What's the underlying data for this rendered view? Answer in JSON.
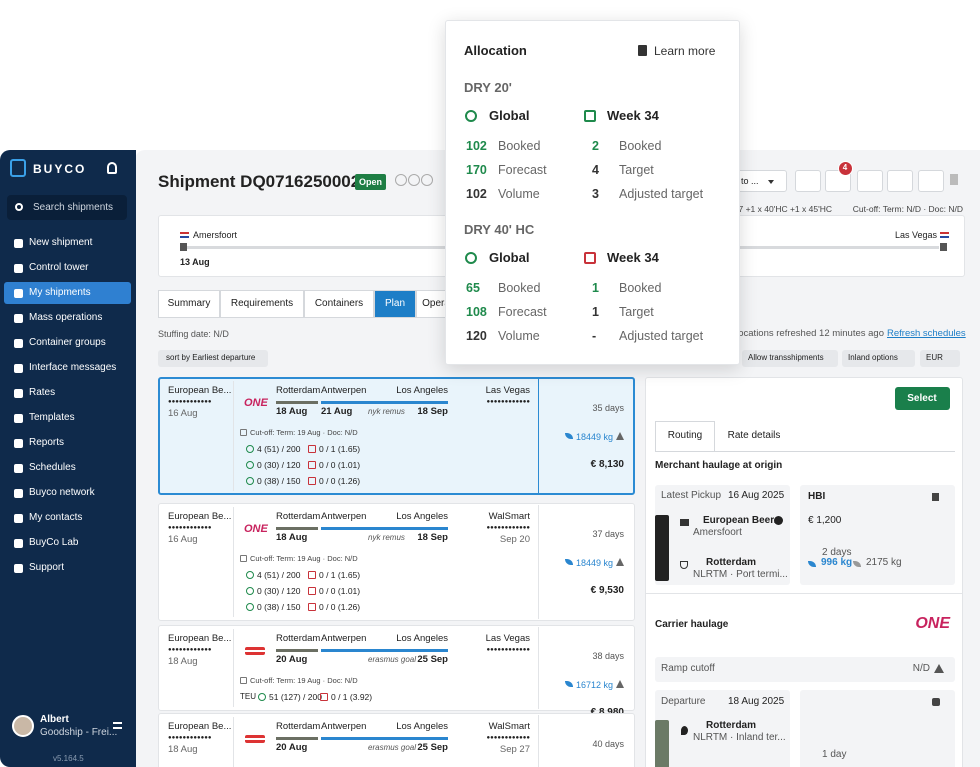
{
  "sidebar": {
    "brand": "BUYCO",
    "search": "Search shipments",
    "nav": [
      "New shipment",
      "Control tower",
      "My shipments",
      "Mass operations",
      "Container groups",
      "Interface messages",
      "Rates",
      "Templates",
      "Reports",
      "Schedules",
      "Buyco network",
      "My contacts",
      "BuyCo Lab",
      "Support"
    ],
    "active": 2,
    "user": {
      "name": "Albert",
      "org": "Goodship - Frei..."
    },
    "version": "v5.164.5"
  },
  "header": {
    "title": "Shipment DQ0716250002",
    "status": "Open",
    "action": "to ...",
    "badge": "4",
    "containers": "7 +1 x 40'HC +1 x 45'HC",
    "cutoff": "Cut-off: Term: N/D · Doc: N/D"
  },
  "route": {
    "origin": "Amersfoort",
    "date": "13 Aug",
    "destination": "Las Vegas"
  },
  "tabs": {
    "items": [
      "Summary",
      "Requirements",
      "Containers",
      "Plan",
      "Opera"
    ],
    "active": 3
  },
  "toolbar": {
    "stuffing": "Stuffing date: N/D",
    "refresh_note": "locations refreshed 12 minutes ago",
    "refresh_link": "Refresh schedules",
    "sort": "sort by Earliest departure",
    "filters": [
      "Allow transshipments",
      "Inland options",
      "EUR"
    ]
  },
  "results": [
    {
      "origin": "European Be...",
      "origin_dots": "●●●●●●●●●●●●",
      "origin_date": "16 Aug",
      "carrier": "ONE",
      "legs": [
        {
          "place": "Rotterdam",
          "date": "18 Aug"
        },
        {
          "place": "Antwerpen",
          "date": "21 Aug",
          "vessel": "nyk remus"
        },
        {
          "place": "Los Angeles",
          "date": "18 Sep"
        }
      ],
      "destination": "Las Vegas",
      "destination_dots": "●●●●●●●●●●●●",
      "cutoff": "Cut-off: Term: 19 Aug · Doc: N/D",
      "allocations": [
        [
          "4 (51) / 200",
          "0 / 1 (1.65)"
        ],
        [
          "0 (30) / 120",
          "0 / 0 (1.01)"
        ],
        [
          "0 (38) / 150",
          "0 / 0 (1.26)"
        ]
      ],
      "duration": "35 days",
      "weight": "18449 kg",
      "price": "€ 8,130"
    },
    {
      "origin": "European Be...",
      "origin_dots": "●●●●●●●●●●●●",
      "origin_date": "16 Aug",
      "carrier": "ONE",
      "legs": [
        {
          "place": "Rotterdam",
          "date": "18 Aug"
        },
        {
          "place": "Antwerpen",
          "vessel": "nyk remus"
        },
        {
          "place": "Los Angeles",
          "date": "18 Sep"
        }
      ],
      "destination": "WalSmart",
      "destination_dots": "●●●●●●●●●●●●",
      "destination_date": "Sep 20",
      "cutoff": "Cut-off: Term: 19 Aug · Doc: N/D",
      "allocations": [
        [
          "4 (51) / 200",
          "0 / 1 (1.65)"
        ],
        [
          "0 (30) / 120",
          "0 / 0 (1.01)"
        ],
        [
          "0 (38) / 150",
          "0 / 0 (1.26)"
        ]
      ],
      "duration": "37 days",
      "weight": "18449 kg",
      "price": "€ 9,530"
    },
    {
      "origin": "European Be...",
      "origin_dots": "●●●●●●●●●●●●",
      "origin_date": "18 Aug",
      "legs": [
        {
          "place": "Rotterdam",
          "date": "20 Aug"
        },
        {
          "place": "Antwerpen",
          "vessel": "erasmus goal"
        },
        {
          "place": "Los Angeles",
          "date": "25 Sep"
        }
      ],
      "destination": "Las Vegas",
      "destination_dots": "●●●●●●●●●●●●",
      "cutoff": "Cut-off: Term: 19 Aug · Doc: N/D",
      "unit": "TEU",
      "allocations": [
        [
          "51 (127) / 200",
          "0 / 1 (3.92)"
        ]
      ],
      "duration": "38 days",
      "weight": "16712 kg",
      "price": "€ 8,980"
    },
    {
      "origin": "European Be...",
      "origin_dots": "●●●●●●●●●●●●",
      "origin_date": "18 Aug",
      "legs": [
        {
          "place": "Rotterdam",
          "date": "20 Aug"
        },
        {
          "place": "Antwerpen",
          "vessel": "erasmus goal"
        },
        {
          "place": "Los Angeles",
          "date": "25 Sep"
        }
      ],
      "destination": "WalSmart",
      "destination_dots": "●●●●●●●●●●●●",
      "destination_date": "Sep 27",
      "duration": "40 days",
      "weight": "16712 kg"
    }
  ],
  "detail": {
    "select": "Select",
    "tabs": [
      "Routing",
      "Rate details"
    ],
    "merchant": {
      "title": "Merchant haulage at origin",
      "pickup_label": "Latest Pickup",
      "pickup_date": "16 Aug 2025",
      "from_name": "European Beer...",
      "from_city": "Amersfoort",
      "to_name": "Rotterdam",
      "to_code": "NLRTM · Port termi...",
      "provider": "HBI",
      "price": "€ 1,200",
      "duration": "2 days",
      "co2": "996 kg",
      "co2_alt": "2175 kg"
    },
    "carrier": {
      "title": "Carrier haulage",
      "logo": "ONE",
      "ramp_label": "Ramp cutoff",
      "ramp_value": "N/D",
      "departure_label": "Departure",
      "departure_date": "18 Aug 2025",
      "place": "Rotterdam",
      "place_code": "NLRTM · Inland ter...",
      "duration": "1 day"
    }
  },
  "popup": {
    "title": "Allocation",
    "link": "Learn more",
    "sections": [
      {
        "title": "DRY 20'",
        "global": "Global",
        "week": "Week 34",
        "rows": [
          [
            "102",
            "Booked",
            "2",
            "Booked"
          ],
          [
            "170",
            "Forecast",
            "4",
            "Target"
          ],
          [
            "102",
            "Volume",
            "3",
            "Adjusted target"
          ]
        ]
      },
      {
        "title": "DRY 40' HC",
        "global": "Global",
        "week": "Week 34",
        "rows": [
          [
            "65",
            "Booked",
            "1",
            "Booked"
          ],
          [
            "108",
            "Forecast",
            "1",
            "Target"
          ],
          [
            "120",
            "Volume",
            "-",
            "Adjusted target"
          ]
        ]
      }
    ]
  }
}
